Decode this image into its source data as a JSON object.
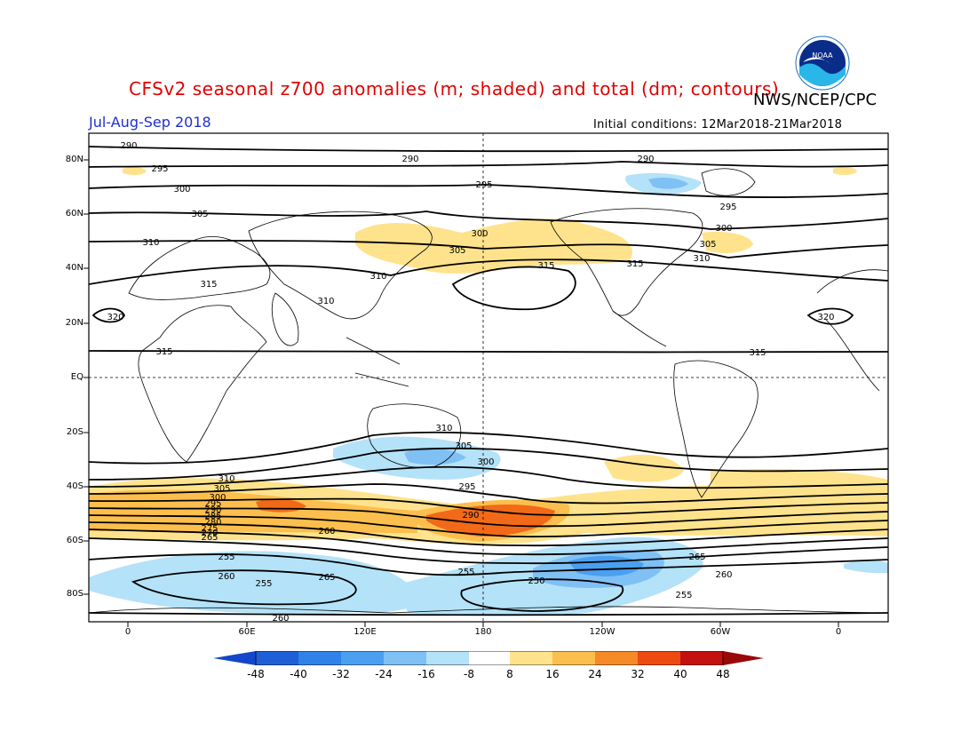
{
  "header": {
    "title": "CFSv2 seasonal z700 anomalies (m; shaded) and total (dm; contours)",
    "organization": "NWS/NCEP/CPC",
    "period": "Jul-Aug-Sep 2018",
    "initial_conditions": "Initial conditions: 12Mar2018-21Mar2018",
    "logo_text": "NOAA"
  },
  "map": {
    "projection": "cylindrical equidistant",
    "lat_labels": [
      "80N",
      "60N",
      "40N",
      "20N",
      "EQ",
      "20S",
      "40S",
      "60S",
      "80S"
    ],
    "lon_labels": [
      "0",
      "60E",
      "120E",
      "180",
      "120W",
      "60W",
      "0"
    ],
    "contour_labels_dm": [
      "290",
      "295",
      "300",
      "305",
      "310",
      "315",
      "320",
      "310",
      "315",
      "305",
      "300",
      "295",
      "290",
      "285",
      "280",
      "275",
      "270",
      "265",
      "260",
      "255",
      "250"
    ],
    "contour_label_texts": {
      "c290a": "290",
      "c290b": "290",
      "c290c": "290",
      "c295a": "295",
      "c295b": "295",
      "c295c": "295",
      "c300a": "300",
      "c300b": "300",
      "c300c": "300",
      "c305a": "305",
      "c305b": "305",
      "c305c": "305",
      "c310a": "310",
      "c310b": "310",
      "c310c": "310",
      "c310d": "310",
      "c315a": "315",
      "c315b": "315",
      "c315c": "315",
      "c315d": "315",
      "c315e": "315",
      "c320a": "320",
      "c320b": "320",
      "s310a": "310",
      "s305a": "305",
      "s300a": "300",
      "s295a": "295",
      "s290a": "290",
      "s310b": "310",
      "s305b": "305",
      "s300b": "300",
      "s295b": "295",
      "s290b": "290",
      "s285b": "285",
      "s280b": "280",
      "s275b": "275",
      "s270b": "270",
      "s265b": "265",
      "s260b": "260",
      "s255a": "255",
      "s260c": "260",
      "s255b": "255",
      "s265c": "265",
      "s250": "250",
      "s255c": "255",
      "s260d": "260",
      "s255d": "255",
      "s265d": "265",
      "s260e": "260"
    }
  },
  "colorbar": {
    "labels": [
      "-48",
      "-40",
      "-32",
      "-24",
      "-16",
      "-8",
      "8",
      "16",
      "24",
      "32",
      "40",
      "48"
    ],
    "colors": [
      "#1e5fd8",
      "#2f82e8",
      "#4b9ff0",
      "#7fc0f5",
      "#b4e2f8",
      "#ffffff",
      "#ffe38c",
      "#fcbf4d",
      "#f58a26",
      "#ec4a10",
      "#c41010"
    ],
    "low_arrow_color": "#1346c8",
    "high_arrow_color": "#9a0808"
  },
  "colors": {
    "title": "#e00000",
    "period": "#1f2fd0",
    "positive_anomaly_light": "#ffe38c",
    "positive_anomaly_mid": "#fcbf4d",
    "positive_anomaly_strong": "#f26a18",
    "negative_anomaly_light": "#b4e2f8",
    "negative_anomaly_mid": "#7fc0f5",
    "negative_anomaly_strong": "#4b9ff0"
  }
}
